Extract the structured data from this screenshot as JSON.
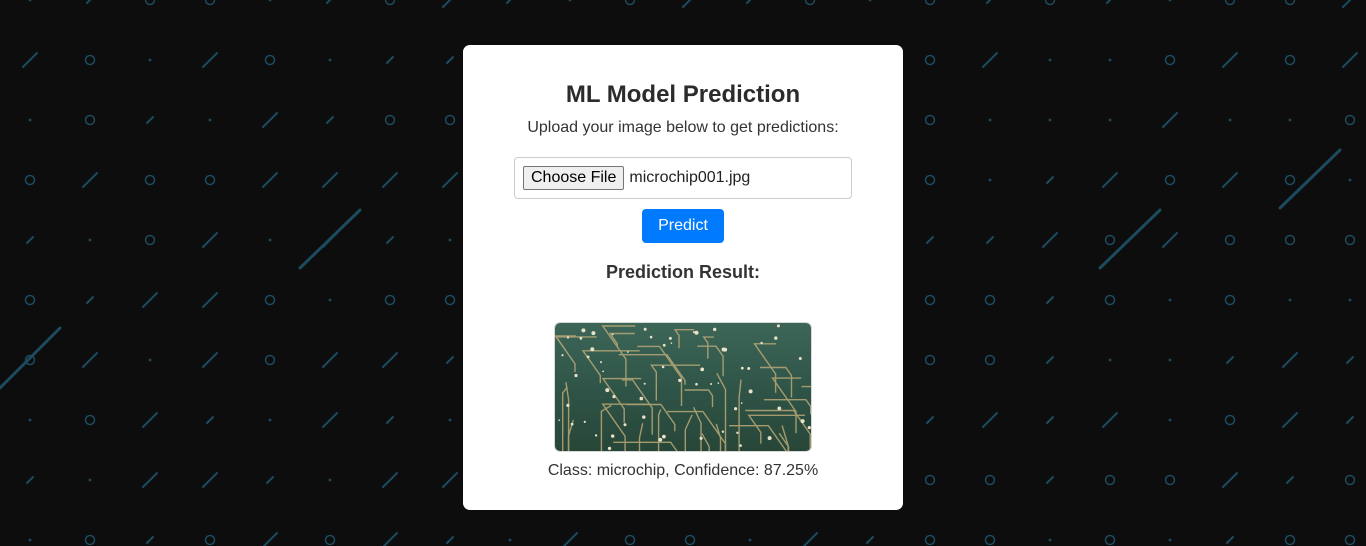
{
  "header": {
    "title": "ML Model Prediction",
    "subtitle": "Upload your image below to get predictions:"
  },
  "upload": {
    "choose_label": "Choose File",
    "file_name": "microchip001.jpg"
  },
  "actions": {
    "predict_label": "Predict"
  },
  "result": {
    "heading": "Prediction Result:",
    "image_subject": "circuit-board",
    "text": "Class: microchip, Confidence: 87.25%"
  },
  "colors": {
    "background": "#0d0d0d",
    "pattern": "#1c4a5f",
    "card": "#ffffff",
    "primary_button": "#007bff",
    "pcb": "#2f5548"
  }
}
